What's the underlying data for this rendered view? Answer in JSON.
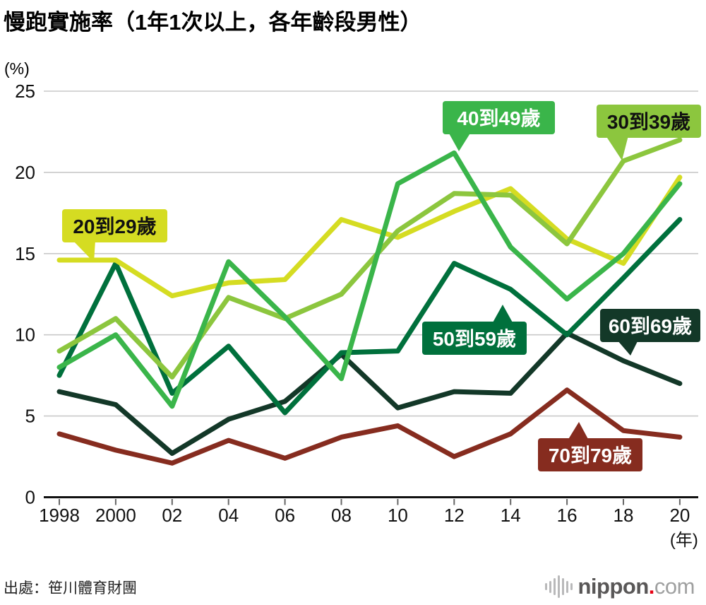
{
  "header": {
    "title": "慢跑實施率（1年1次以上，各年齡段男性）"
  },
  "footer": {
    "source": "出處：笹川體育財團",
    "logo": {
      "name": "nippon",
      "dot": ".",
      "tld": "com"
    }
  },
  "chart_data": {
    "type": "line",
    "title": "慢跑實施率（1年1次以上，各年齡段男性）",
    "y_unit_label": "(%)",
    "x_axis_unit_label": "(年)",
    "grid": "horizontal",
    "legend_position": "inline-callouts",
    "ylim": [
      0,
      25
    ],
    "y_ticks": [
      0,
      5,
      10,
      15,
      20,
      25
    ],
    "years": [
      1998,
      2000,
      2002,
      2004,
      2006,
      2008,
      2010,
      2012,
      2014,
      2016,
      2018,
      2020
    ],
    "x_labels": [
      "1998",
      "2000",
      "02",
      "04",
      "06",
      "08",
      "10",
      "12",
      "14",
      "16",
      "18",
      "20"
    ],
    "series": [
      {
        "id": "20-29",
        "name": "20到29歲",
        "color": "#d5dc22",
        "label_text_color": "#111111",
        "values": [
          14.6,
          14.6,
          12.4,
          13.2,
          13.4,
          17.1,
          16.0,
          17.6,
          19.0,
          15.9,
          14.4,
          19.7
        ]
      },
      {
        "id": "30-39",
        "name": "30到39歲",
        "color": "#8cc63e",
        "label_text_color": "#111111",
        "values": [
          9.0,
          11.0,
          7.4,
          12.3,
          11.0,
          12.5,
          16.4,
          18.7,
          18.6,
          15.6,
          20.7,
          22.0
        ]
      },
      {
        "id": "40-49",
        "name": "40到49歲",
        "color": "#3ab54a",
        "label_text_color": "#ffffff",
        "values": [
          8.0,
          10.0,
          5.6,
          14.5,
          11.1,
          7.3,
          19.3,
          21.2,
          15.4,
          12.2,
          15.0,
          19.3
        ]
      },
      {
        "id": "50-59",
        "name": "50到59歲",
        "color": "#00703c",
        "label_text_color": "#ffffff",
        "values": [
          7.5,
          14.4,
          6.4,
          9.3,
          5.2,
          8.9,
          9.0,
          14.4,
          12.8,
          10.0,
          13.5,
          17.1
        ]
      },
      {
        "id": "60-69",
        "name": "60到69歲",
        "color": "#133828",
        "label_text_color": "#ffffff",
        "values": [
          6.5,
          5.7,
          2.7,
          4.8,
          5.9,
          8.8,
          5.5,
          6.5,
          6.4,
          10.1,
          8.4,
          7.0
        ]
      },
      {
        "id": "70-79",
        "name": "70到79歲",
        "color": "#862c1f",
        "label_text_color": "#ffffff",
        "values": [
          3.9,
          2.9,
          2.1,
          3.5,
          2.4,
          3.7,
          4.4,
          2.5,
          3.9,
          6.6,
          4.1,
          3.7
        ]
      }
    ]
  }
}
